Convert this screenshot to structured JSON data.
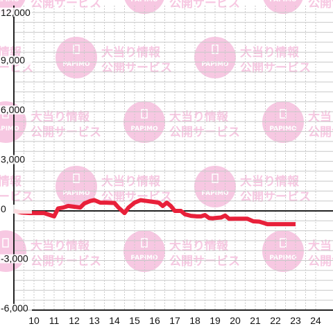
{
  "watermark": {
    "line1": "大当り情報",
    "line2": "公開サービス",
    "brand": "PAPIMO",
    "color": "#f7c8e2"
  },
  "colors": {
    "line": "#e8203a",
    "axis": "#222222",
    "grid_major": "#c8c8c8",
    "grid_minor": "#c8c8c8",
    "background": "#ffffff"
  },
  "chart_data": {
    "type": "line",
    "title": "",
    "xlabel": "",
    "ylabel": "",
    "xlim": [
      9,
      24
    ],
    "ylim": [
      -6000,
      12000
    ],
    "x_ticks": [
      10,
      11,
      12,
      13,
      14,
      15,
      16,
      17,
      18,
      19,
      20,
      21,
      22,
      23,
      24
    ],
    "y_ticks": [
      -6000,
      -3000,
      0,
      3000,
      6000,
      9000,
      12000
    ],
    "y_tick_labels": [
      "-6,000",
      "-3,000",
      "0",
      "3,000",
      "6,000",
      "9,000",
      "12,000"
    ],
    "grid": true,
    "series": [
      {
        "x": [
          9.0,
          9.4,
          9.8,
          10.1,
          10.5,
          10.8,
          11.0,
          11.2,
          11.45,
          11.7,
          12.0,
          12.3,
          12.5,
          12.8,
          13.0,
          13.3,
          13.6,
          14.0,
          14.2,
          14.5,
          14.7,
          15.0,
          15.3,
          15.6,
          15.9,
          16.2,
          16.4,
          16.6,
          16.8,
          17.0,
          17.3,
          17.5,
          17.8,
          18.1,
          18.3,
          18.5,
          18.7,
          18.9,
          19.0,
          19.3,
          19.5,
          19.7,
          20.0,
          20.3,
          20.6,
          20.9,
          21.2,
          21.6,
          22.0,
          22.4,
          22.7,
          23.0
        ],
        "values": [
          0,
          -100,
          -130,
          -130,
          -130,
          -250,
          -330,
          150,
          200,
          300,
          250,
          200,
          450,
          600,
          650,
          500,
          500,
          480,
          200,
          -130,
          200,
          500,
          650,
          600,
          550,
          500,
          300,
          500,
          300,
          0,
          0,
          -200,
          -300,
          -330,
          -330,
          -250,
          -430,
          -450,
          -430,
          -400,
          -280,
          -480,
          -470,
          -470,
          -470,
          -630,
          -650,
          -800,
          -800,
          -800,
          -800,
          -800
        ]
      }
    ]
  }
}
